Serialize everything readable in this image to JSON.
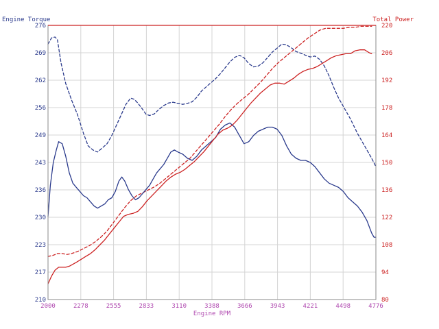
{
  "chart_data": {
    "type": "line",
    "left_axis_title": "Engine Torque",
    "right_axis_title": "Total Power",
    "xlabel": "Engine RPM",
    "grid": true,
    "xlim": [
      2000,
      4776
    ],
    "x_ticks": [
      "2000",
      "2278",
      "2555",
      "2833",
      "3110",
      "3388",
      "3666",
      "3943",
      "4221",
      "4498",
      "4776"
    ],
    "left_ylim": [
      210,
      276
    ],
    "left_ticks": [
      "210",
      "217",
      "223",
      "230",
      "236",
      "243",
      "249",
      "256",
      "262",
      "269",
      "276"
    ],
    "right_ylim": [
      80,
      220
    ],
    "right_ticks": [
      "80",
      "94",
      "108",
      "122",
      "136",
      "150",
      "164",
      "178",
      "192",
      "206",
      "220"
    ],
    "colors": {
      "torque": "#2a3a8c",
      "power": "#cc2222",
      "left_text": "#2a3a8c",
      "right_text": "#cc2222",
      "x_text": "#b04ab0",
      "grid": "#d4d4d4"
    },
    "series": [
      {
        "axis": "left",
        "color_key": "torque",
        "style": "dashed",
        "x": [
          2000,
          2030,
          2060,
          2080,
          2110,
          2150,
          2200,
          2250,
          2300,
          2340,
          2380,
          2420,
          2460,
          2500,
          2540,
          2580,
          2620,
          2660,
          2700,
          2730,
          2760,
          2800,
          2830,
          2860,
          2900,
          2940,
          2980,
          3020,
          3060,
          3100,
          3140,
          3180,
          3220,
          3260,
          3300,
          3340,
          3380,
          3420,
          3460,
          3500,
          3540,
          3580,
          3620,
          3660,
          3700,
          3740,
          3780,
          3820,
          3860,
          3900,
          3940,
          3980,
          4020,
          4060,
          4100,
          4140,
          4180,
          4220,
          4260,
          4300,
          4340,
          4380,
          4420,
          4460,
          4500,
          4560,
          4620,
          4680,
          4740,
          4776
        ],
        "y": [
          271.5,
          273.0,
          273.2,
          272.5,
          267,
          262,
          258,
          254.5,
          250,
          247,
          246,
          245.5,
          246.5,
          247.5,
          249.5,
          252,
          254.5,
          257,
          258.5,
          258.2,
          257.3,
          255.8,
          254.6,
          254.3,
          254.7,
          255.8,
          256.7,
          257.3,
          257.5,
          257.2,
          257,
          257.2,
          257.6,
          258.7,
          260.2,
          261.2,
          262.2,
          263.2,
          264.4,
          265.8,
          267.2,
          268.3,
          268.8,
          268.2,
          266.8,
          266,
          266.2,
          267,
          268.3,
          269.6,
          270.5,
          271.5,
          271.3,
          270.6,
          269.7,
          269.3,
          268.8,
          268.4,
          268.6,
          267.8,
          266.2,
          263.8,
          261,
          258.5,
          256.5,
          253.5,
          250,
          247,
          244,
          242
        ]
      },
      {
        "axis": "right",
        "color_key": "power",
        "style": "dashed",
        "x": [
          2000,
          2040,
          2080,
          2120,
          2160,
          2200,
          2250,
          2300,
          2350,
          2400,
          2450,
          2500,
          2550,
          2600,
          2650,
          2700,
          2750,
          2800,
          2850,
          2900,
          2950,
          3000,
          3050,
          3100,
          3150,
          3200,
          3250,
          3300,
          3350,
          3400,
          3450,
          3500,
          3550,
          3600,
          3650,
          3700,
          3750,
          3800,
          3850,
          3900,
          3950,
          4000,
          4050,
          4100,
          4150,
          4200,
          4250,
          4300,
          4350,
          4400,
          4450,
          4500,
          4550,
          4600,
          4650,
          4700,
          4740
        ],
        "y": [
          102,
          102.5,
          103.5,
          103.5,
          103,
          103.5,
          104.5,
          106,
          107.5,
          109.5,
          112,
          115,
          119,
          123,
          127,
          130.5,
          133,
          134.5,
          136,
          137.5,
          139.5,
          142,
          144.5,
          147,
          149.5,
          152,
          155.5,
          159,
          162.5,
          166,
          169.5,
          173.5,
          177,
          180,
          182.5,
          185,
          188,
          191,
          194.5,
          198,
          201,
          203.5,
          206,
          208.5,
          211,
          213.5,
          215.5,
          217.5,
          218.5,
          218.5,
          218.5,
          218.5,
          219,
          219,
          219.5,
          219.5,
          219.5
        ]
      },
      {
        "axis": "left",
        "color_key": "torque",
        "style": "solid",
        "x": [
          2000,
          2020,
          2045,
          2070,
          2090,
          2120,
          2150,
          2180,
          2210,
          2240,
          2270,
          2300,
          2330,
          2360,
          2390,
          2420,
          2450,
          2480,
          2510,
          2540,
          2570,
          2600,
          2625,
          2650,
          2680,
          2710,
          2740,
          2770,
          2800,
          2830,
          2860,
          2890,
          2920,
          2950,
          2980,
          3010,
          3040,
          3070,
          3100,
          3140,
          3180,
          3220,
          3260,
          3300,
          3340,
          3380,
          3420,
          3460,
          3500,
          3540,
          3580,
          3620,
          3660,
          3700,
          3740,
          3780,
          3820,
          3860,
          3900,
          3940,
          3980,
          4020,
          4060,
          4100,
          4140,
          4180,
          4220,
          4260,
          4300,
          4340,
          4380,
          4420,
          4460,
          4500,
          4540,
          4580,
          4620,
          4660,
          4700,
          4740,
          4760,
          4776
        ],
        "y": [
          230,
          237.5,
          243,
          246,
          248,
          247.5,
          244.5,
          240.5,
          238,
          237,
          236,
          235,
          234.5,
          233.5,
          232.5,
          232,
          232.5,
          233,
          234,
          234.5,
          236,
          238.5,
          239.5,
          238.5,
          236.5,
          235,
          234,
          234.5,
          235.5,
          236.5,
          237.5,
          239,
          240.5,
          241.5,
          242.5,
          244,
          245.5,
          246,
          245.5,
          245,
          244,
          243.5,
          244.5,
          246,
          247,
          248,
          249,
          251,
          252,
          252.5,
          251.5,
          249.5,
          247.5,
          248,
          249.5,
          250.5,
          251,
          251.5,
          251.5,
          251,
          249.5,
          247,
          245,
          244,
          243.5,
          243.5,
          243,
          242,
          240.5,
          239,
          238,
          237.5,
          237,
          236,
          234.5,
          233.5,
          232.5,
          231,
          229,
          226,
          225,
          225
        ]
      },
      {
        "axis": "right",
        "color_key": "power",
        "style": "solid",
        "x": [
          2000,
          2030,
          2060,
          2090,
          2120,
          2150,
          2180,
          2210,
          2240,
          2280,
          2320,
          2360,
          2400,
          2440,
          2480,
          2520,
          2560,
          2600,
          2640,
          2680,
          2720,
          2760,
          2800,
          2840,
          2880,
          2920,
          2960,
          3000,
          3040,
          3080,
          3120,
          3160,
          3200,
          3240,
          3280,
          3320,
          3360,
          3400,
          3440,
          3480,
          3520,
          3560,
          3600,
          3640,
          3680,
          3720,
          3760,
          3800,
          3840,
          3880,
          3920,
          3960,
          4000,
          4040,
          4080,
          4120,
          4160,
          4200,
          4240,
          4280,
          4320,
          4360,
          4400,
          4440,
          4480,
          4520,
          4560,
          4600,
          4640,
          4680,
          4720,
          4740
        ],
        "y": [
          88,
          92,
          95,
          96.5,
          96.5,
          96.5,
          97,
          98,
          99,
          100.5,
          102,
          103.5,
          105.5,
          108,
          110.5,
          113.5,
          116.5,
          119.5,
          122.5,
          123.5,
          124,
          125,
          127.5,
          130.5,
          133,
          135.5,
          138,
          140.5,
          142.5,
          144,
          145,
          146.5,
          148.5,
          150.5,
          153,
          155.5,
          158.5,
          161.5,
          164.5,
          166.5,
          167.5,
          169,
          171.5,
          174.5,
          177.5,
          180.5,
          183,
          185.5,
          187.5,
          189.5,
          190.5,
          190.5,
          190,
          191.5,
          193,
          195,
          196.5,
          197.5,
          198,
          199,
          200.5,
          202,
          203.5,
          204.5,
          205,
          205.5,
          205.5,
          207,
          207.5,
          207.5,
          206,
          205.5
        ]
      }
    ]
  }
}
